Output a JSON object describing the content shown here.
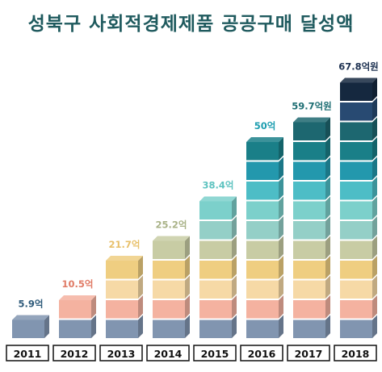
{
  "chart_data": {
    "type": "bar",
    "title": "성북구 사회적경제제품 공공구매 달성액",
    "categories": [
      "2011",
      "2012",
      "2013",
      "2014",
      "2015",
      "2016",
      "2017",
      "2018"
    ],
    "values": [
      5.9,
      10.5,
      21.7,
      25.2,
      38.4,
      50,
      59.7,
      67.8
    ],
    "data_labels": [
      "5.9억",
      "10.5억",
      "21.7억",
      "25.2억",
      "38.4억",
      "50억",
      "59.7억원",
      "67.8억원"
    ],
    "label_colors": [
      "#2e5a7a",
      "#e07b66",
      "#e8c06a",
      "#a9b287",
      "#5ec3c0",
      "#1e9eb0",
      "#1f6f74",
      "#1c3050"
    ],
    "block_colors": [
      "#8195b0",
      "#f4b2a0",
      "#f6d9a6",
      "#efce81",
      "#c8cca4",
      "#94cfc7",
      "#7cd0cb",
      "#4dbdc6",
      "#2398ad",
      "#1a7f88",
      "#1d6770",
      "#284a72",
      "#15283f"
    ],
    "axis_box_border": "#111111"
  }
}
